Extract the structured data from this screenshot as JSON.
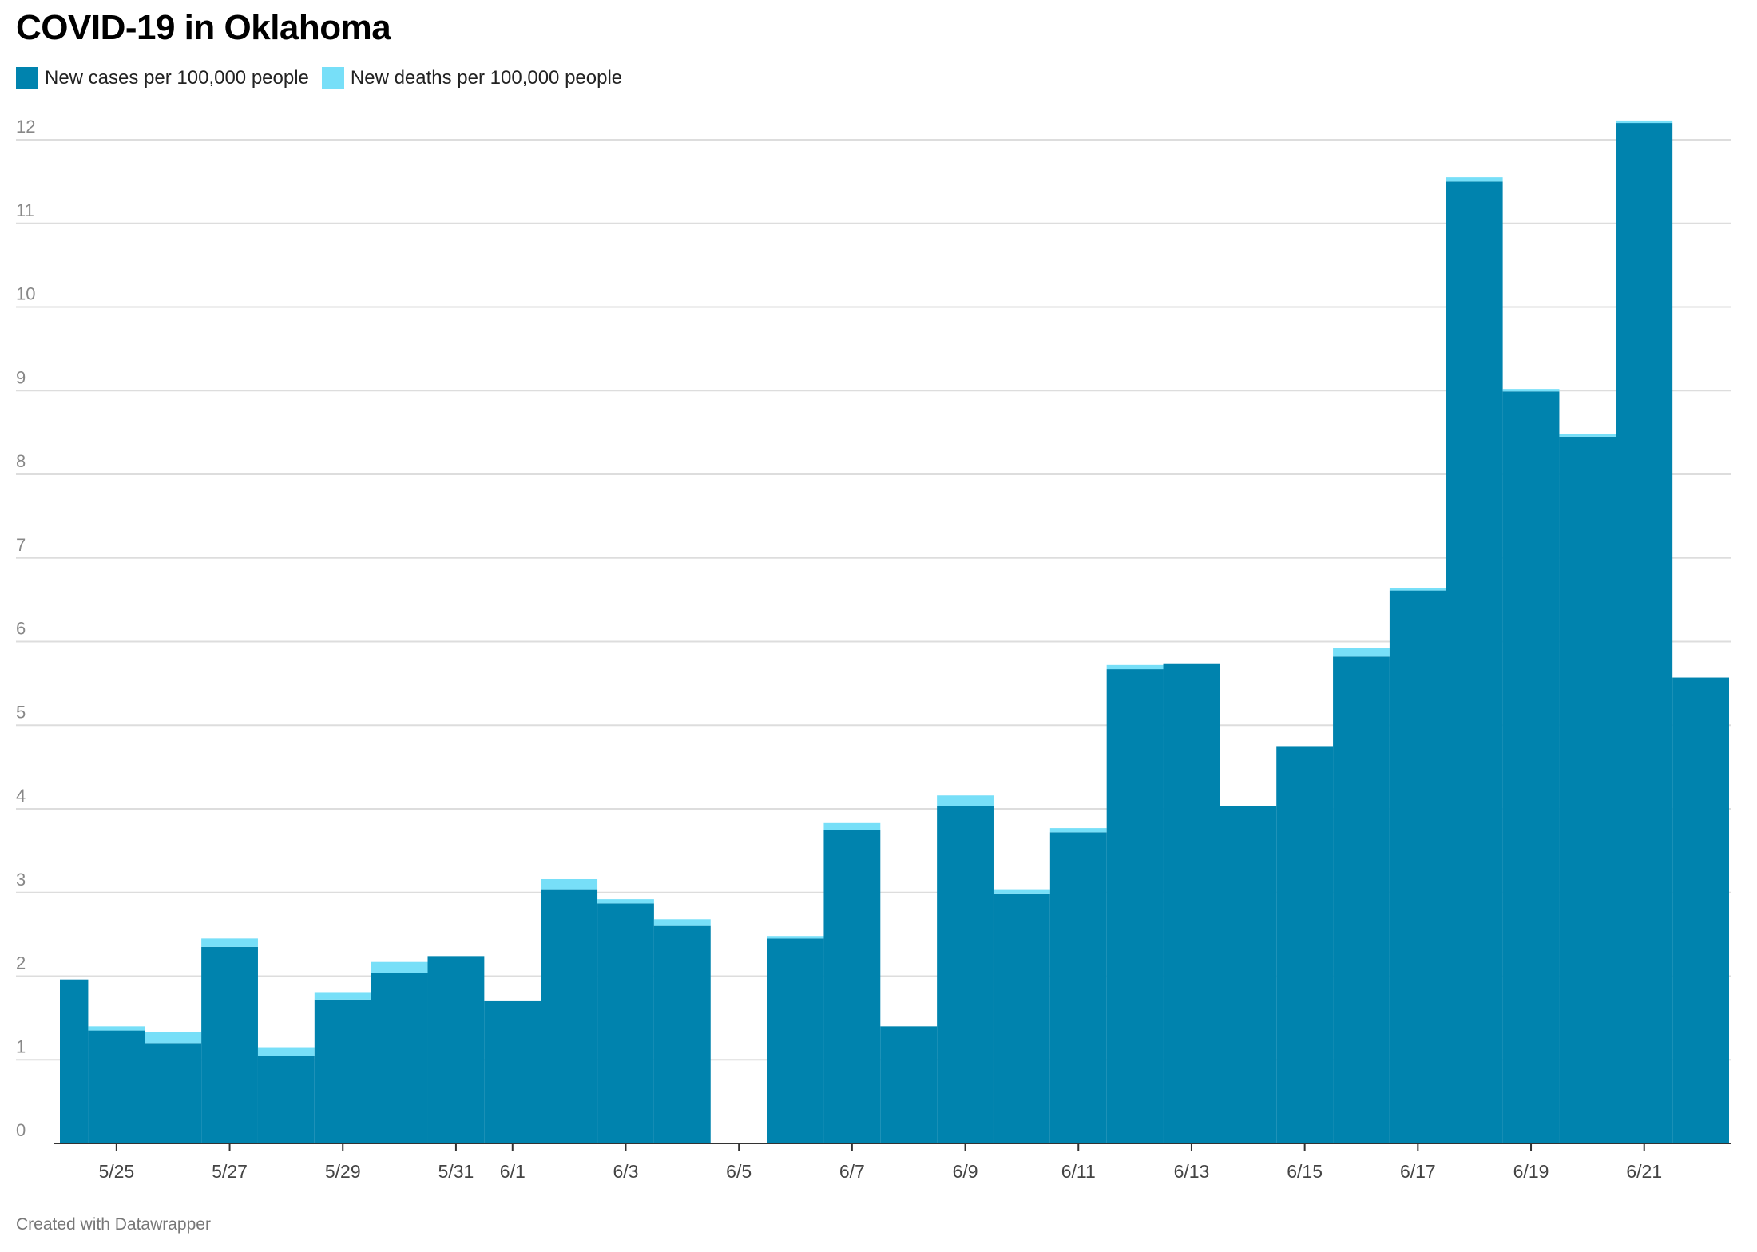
{
  "title": "COVID-19 in Oklahoma",
  "footer": "Created with Datawrapper",
  "colors": {
    "cases": "#0083ae",
    "deaths": "#77dff8",
    "grid": "#dddddd",
    "tick_text": "#888888",
    "axis_text": "#444444"
  },
  "legend": [
    {
      "label": "New cases per 100,000 people",
      "color": "#0083ae"
    },
    {
      "label": "New deaths per 100,000 people",
      "color": "#77dff8"
    }
  ],
  "chart_data": {
    "type": "bar",
    "stacked": true,
    "title": "COVID-19 in Oklahoma",
    "xlabel": "",
    "ylabel": "",
    "ylim": [
      0,
      12
    ],
    "yticks": [
      0,
      1,
      2,
      3,
      4,
      5,
      6,
      7,
      8,
      9,
      10,
      11,
      12
    ],
    "grid": true,
    "legend_position": "top-left",
    "categories": [
      "5/24",
      "5/25",
      "5/26",
      "5/27",
      "5/28",
      "5/29",
      "5/30",
      "5/31",
      "6/1",
      "6/2",
      "6/3",
      "6/4",
      "6/5",
      "6/6",
      "6/7",
      "6/8",
      "6/9",
      "6/10",
      "6/11",
      "6/12",
      "6/13",
      "6/14",
      "6/15",
      "6/16",
      "6/17",
      "6/18",
      "6/19",
      "6/20",
      "6/21",
      "6/22"
    ],
    "xtick_labels": [
      "5/25",
      "5/27",
      "5/29",
      "5/31",
      "6/1",
      "6/3",
      "6/5",
      "6/7",
      "6/9",
      "6/11",
      "6/13",
      "6/15",
      "6/17",
      "6/19",
      "6/21"
    ],
    "series": [
      {
        "name": "New cases per 100,000 people",
        "values": [
          1.96,
          1.35,
          1.2,
          2.35,
          1.05,
          1.72,
          2.04,
          2.24,
          1.7,
          3.03,
          2.87,
          2.6,
          0,
          2.45,
          3.75,
          1.4,
          4.03,
          2.98,
          3.72,
          5.67,
          5.74,
          4.03,
          4.75,
          5.82,
          6.61,
          11.5,
          8.99,
          8.45,
          12.2,
          5.57
        ]
      },
      {
        "name": "New deaths per 100,000 people",
        "values": [
          0,
          0.05,
          0.13,
          0.1,
          0.1,
          0.08,
          0.13,
          0,
          0,
          0.13,
          0.05,
          0.08,
          0,
          0.03,
          0.08,
          0,
          0.13,
          0.05,
          0.05,
          0.05,
          0,
          0,
          0,
          0.1,
          0.03,
          0.05,
          0.03,
          0.03,
          0.03,
          0
        ]
      }
    ]
  }
}
